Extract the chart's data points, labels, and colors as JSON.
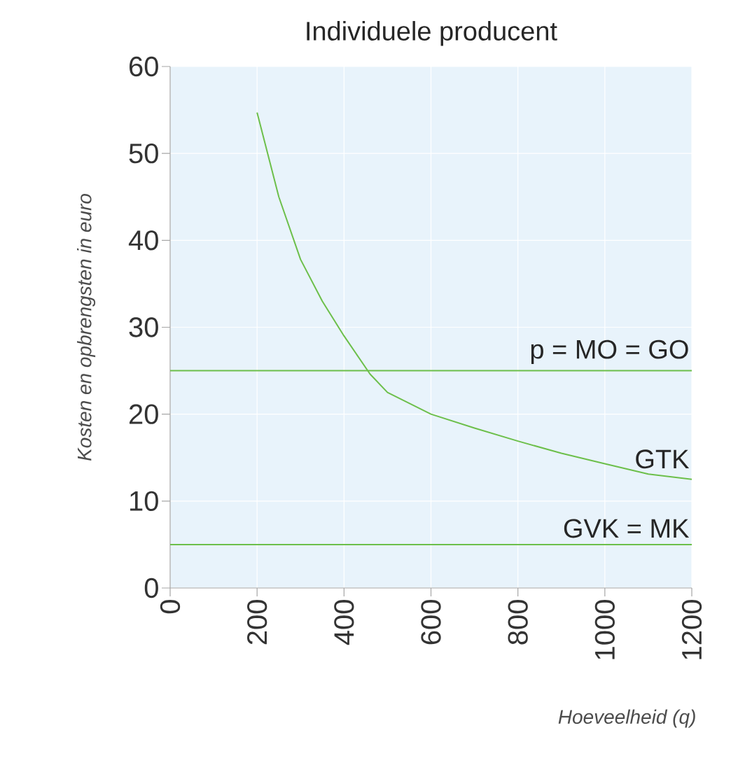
{
  "chart_data": {
    "type": "line",
    "title": "Individuele producent",
    "xlabel": "Hoeveelheid (q)",
    "ylabel": "Kosten en opbrengsten in euro",
    "series": [
      {
        "name": "GTK",
        "color": "#6cbf4a",
        "x": [
          200,
          250,
          300,
          350,
          400,
          460,
          500,
          600,
          700,
          800,
          900,
          1000,
          1100,
          1200
        ],
        "values": [
          54.7,
          45,
          37.8,
          33,
          29,
          24.6,
          22.5,
          20,
          18.4,
          16.9,
          15.5,
          14.3,
          13.1,
          12.5
        ]
      }
    ],
    "ref_lines": [
      {
        "axis": "y",
        "value": 25,
        "label": "p = MO = GO",
        "color": "#6cbf4a"
      },
      {
        "axis": "y",
        "value": 5,
        "label": "GVK = MK",
        "color": "#6cbf4a"
      }
    ],
    "xlim": [
      0,
      1200
    ],
    "ylim": [
      0,
      60
    ],
    "xticks": [
      0,
      200,
      400,
      600,
      800,
      1000,
      1200
    ],
    "yticks": [
      0,
      10,
      20,
      30,
      40,
      50,
      60
    ],
    "grid": true,
    "marker": "none",
    "line_style": "solid"
  }
}
